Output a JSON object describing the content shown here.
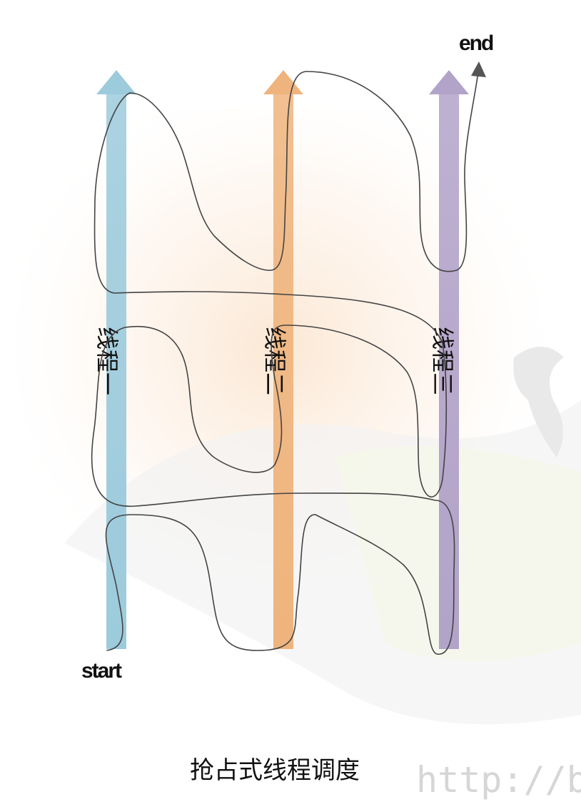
{
  "labels": {
    "start": "start",
    "end": "end"
  },
  "threads": [
    {
      "label": "线程一",
      "color": "#9ccbdc"
    },
    {
      "label": "线程二",
      "color": "#efb47d"
    },
    {
      "label": "线程三",
      "color": "#b2a3c9"
    }
  ],
  "caption": "抢占式线程调度",
  "watermark": "http://b",
  "colors": {
    "flow_line": "#444444",
    "end_arrow": "#555555"
  }
}
